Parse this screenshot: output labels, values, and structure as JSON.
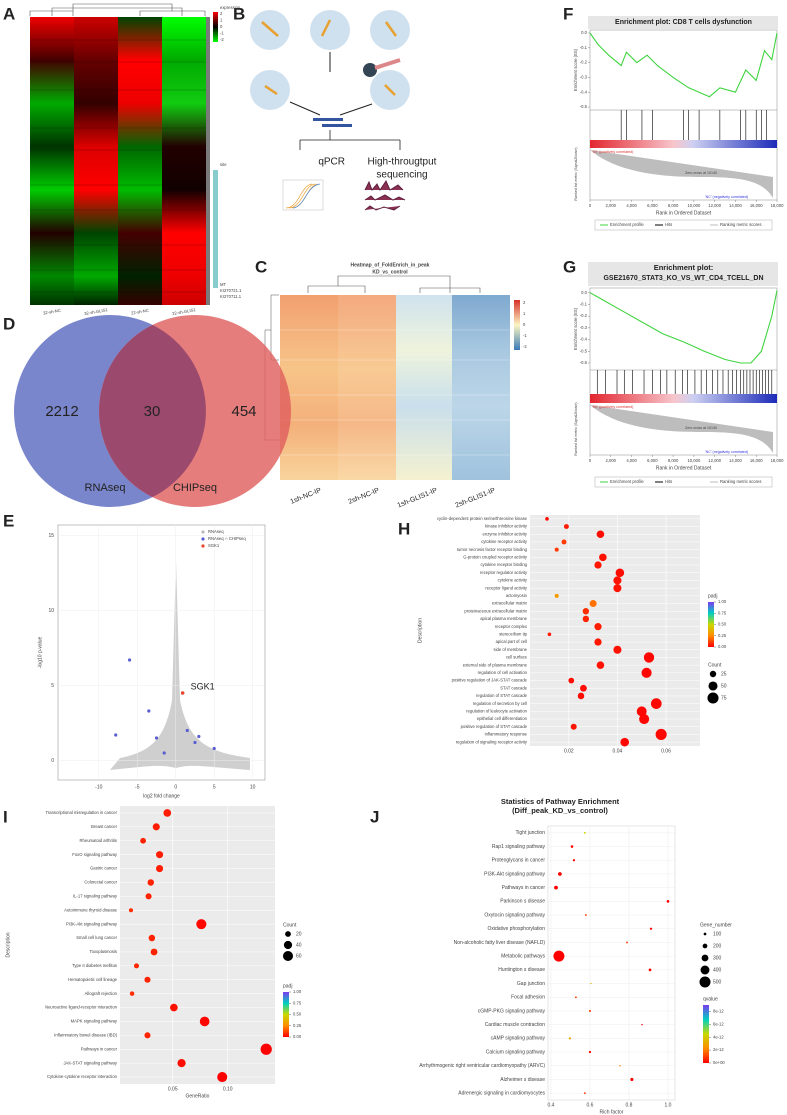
{
  "labels": [
    "A",
    "B",
    "C",
    "D",
    "E",
    "F",
    "G",
    "H",
    "I",
    "J"
  ],
  "A": {
    "legend_title": "expression",
    "legend_ticks": [
      2,
      1,
      0,
      -1,
      -2
    ],
    "legend2_title": "site",
    "site_items": [
      "MT",
      "KI270721.1",
      "KI270711.1"
    ],
    "columns": [
      "32-sh-NC",
      "32-sh-GLIS1",
      "22-sh-NC",
      "22-sh-GLIS1"
    ]
  },
  "B": {
    "qpcr": "qPCR",
    "seq1": "High-througtput",
    "seq2": "sequencing"
  },
  "C": {
    "title": "Heatmap_of_FoldEnrich_in_peak",
    "subtitle": "KD_vs_control",
    "columns": [
      "1sh-NC-IP",
      "2sh-NC-IP",
      "1sh-GLIS1-IP",
      "2sh-GLIS1-IP"
    ],
    "scale_ticks": [
      2,
      1,
      0,
      -1,
      -2
    ]
  },
  "D": {
    "sets": [
      "RNAseq",
      "CHIPseq"
    ],
    "counts": [
      2212,
      30,
      454
    ]
  },
  "E": {
    "xlabel": "log2 fold change",
    "ylabel": "-log10 p-value",
    "legend": [
      "RNAseq",
      "RNAseq ∩ CHIPseq",
      "SGK1"
    ],
    "annotation": "SGK1",
    "xlim": [
      -15.3,
      11.6
    ],
    "ylim": [
      -1.3,
      15.7
    ],
    "xticks": [
      -10,
      -5,
      0,
      5,
      10
    ],
    "yticks": [
      0,
      5,
      10,
      15
    ],
    "grid": true,
    "overlap_x": [
      -6,
      -7.8,
      -3.5,
      -2.5,
      1.5,
      2.5,
      3,
      5,
      -1.5
    ],
    "overlap_y": [
      6.7,
      1.7,
      3.3,
      1.5,
      2,
      1.2,
      1.6,
      0.8,
      0.5
    ],
    "sgk1_x": [
      0.9
    ],
    "sgk1_y": [
      4.5
    ]
  },
  "F": {
    "title": "Enrichment plot: CD8 T cells dysfunction",
    "ylabel": "Enrichment score (ES)",
    "ylabel2": "Ranked list metric (Signal2Noise)",
    "xlabel": "Rank in Ordered Dataset",
    "pos_label": "'SK' (positively correlated)",
    "neg_label": "'NC' (negatively correlated)",
    "zero_cross": "Zero cross at 10140",
    "legend": [
      "Enrichment profile",
      "Hits",
      "Ranking metric scores"
    ],
    "xlim": [
      0,
      18000
    ],
    "ylim": [
      -0.52,
      0.02
    ],
    "xticks": [
      0,
      {
        "value": 2000,
        "label": "2,000"
      },
      {
        "value": 4000,
        "label": "4,000"
      },
      {
        "value": 6000,
        "label": "6,000"
      },
      {
        "value": 8000,
        "label": "8,000"
      },
      {
        "value": 10000,
        "label": "10,000"
      },
      {
        "value": 12000,
        "label": "12,000"
      },
      {
        "value": 14000,
        "label": "14,000"
      },
      {
        "value": 16000,
        "label": "16,000"
      },
      {
        "value": 18000,
        "label": "18,000"
      }
    ],
    "yticks": [
      {
        "value": 0,
        "label": "0.0"
      },
      -0.1,
      -0.2,
      -0.3,
      -0.4,
      -0.5
    ],
    "es_rank": [
      0,
      800,
      1800,
      3000,
      3500,
      4500,
      5500,
      6500,
      8000,
      9500,
      11500,
      12500,
      14000,
      15000,
      16000,
      16800,
      17500,
      18000
    ],
    "es_values": [
      0,
      -0.08,
      -0.15,
      -0.22,
      -0.13,
      -0.2,
      -0.15,
      -0.22,
      -0.3,
      -0.37,
      -0.43,
      -0.37,
      -0.4,
      -0.25,
      -0.32,
      -0.12,
      -0.18,
      0
    ],
    "hits": [
      3000,
      3500,
      5000,
      6000,
      9000,
      9500,
      10500,
      12500,
      14500,
      15000,
      16000,
      16500,
      17000
    ]
  },
  "G": {
    "title": "Enrichment plot:",
    "subtitle": "GSE21670_STAT3_KO_VS_WT_CD4_TCELL_DN",
    "ylabel": "Enrichment score (ES)",
    "ylabel2": "Ranked list metric (Signal2Noise)",
    "xlabel": "Rank in Ordered Dataset",
    "pos_label": "'SK' (positively correlated)",
    "neg_label": "'NC' (negatively correlated)",
    "zero_cross": "Zero cross at 10140",
    "legend": [
      "Enrichment profile",
      "Hits",
      "Ranking metric scores"
    ],
    "xlim": [
      0,
      18000
    ],
    "ylim": [
      -0.66,
      0.04
    ],
    "xticks": [
      0,
      {
        "value": 2000,
        "label": "2,000"
      },
      {
        "value": 4000,
        "label": "4,000"
      },
      {
        "value": 6000,
        "label": "6,000"
      },
      {
        "value": 8000,
        "label": "8,000"
      },
      {
        "value": 10000,
        "label": "10,000"
      },
      {
        "value": 12000,
        "label": "12,000"
      },
      {
        "value": 14000,
        "label": "14,000"
      },
      {
        "value": 16000,
        "label": "16,000"
      },
      {
        "value": 18000,
        "label": "18,000"
      }
    ],
    "yticks": [
      {
        "value": 0,
        "label": "0.0"
      },
      -0.1,
      -0.2,
      -0.3,
      -0.4,
      -0.5,
      -0.6
    ],
    "es_rank": [
      0,
      1000,
      3000,
      5000,
      7000,
      9000,
      11000,
      13000,
      14500,
      15500,
      16500,
      17500,
      18000
    ],
    "es_values": [
      0,
      -0.05,
      -0.15,
      -0.25,
      -0.35,
      -0.42,
      -0.5,
      -0.57,
      -0.6,
      -0.6,
      -0.5,
      -0.2,
      0.02
    ],
    "hits": [
      700,
      1500,
      2600,
      3300,
      4100,
      5200,
      6000,
      6800,
      7400,
      8200,
      8900,
      9400,
      10100,
      10700,
      11200,
      11800,
      12300,
      12800,
      13300,
      13700,
      14100,
      14500,
      14800,
      15100,
      15400,
      15700,
      16000,
      16300,
      16600,
      16900,
      17200,
      17500
    ]
  },
  "H": {
    "ylabel": "Description",
    "size_title": "Count",
    "color_title": "padj",
    "categories": [
      "cyclin-dependent protein serine/threonine kinase",
      "kinase inhibitor activity",
      "enzyme inhibitor activity",
      "cytokine receptor activity",
      "tumor necrosis factor receptor binding",
      "G-protein coupled receptor activity",
      "cytokine receptor binding",
      "receptor regulator activity",
      "cytokine activity",
      "receptor ligand activity",
      "actomyosin",
      "extracellular matrix",
      "proteinaceous extracellular matrix",
      "apical plasma membrane",
      "receptor complex",
      "stereocilium tip",
      "apical part of cell",
      "side of membrane",
      "cell surface",
      "external side of plasma membrane",
      "regulation of cell activation",
      "positive regulation of JAK-STAT cascade",
      "STAT cascade",
      "regulation of STAT cascade",
      "regulation of secretion by cell",
      "regulation of leukocyte activation",
      "epithelial cell differentiation",
      "positive regulation of STAT cascade",
      "inflammatory response",
      "regulation of signaling receptor activity"
    ],
    "values": [
      0.011,
      0.019,
      0.033,
      0.018,
      0.015,
      0.034,
      0.032,
      0.041,
      0.04,
      0.04,
      0.015,
      0.03,
      0.027,
      0.027,
      0.032,
      0.012,
      0.032,
      0.04,
      0.053,
      0.033,
      0.052,
      0.021,
      0.026,
      0.025,
      0.056,
      0.05,
      0.051,
      0.022,
      0.058,
      0.043
    ],
    "sizes": [
      8,
      15,
      35,
      15,
      10,
      35,
      32,
      45,
      40,
      40,
      10,
      30,
      25,
      25,
      32,
      8,
      32,
      40,
      65,
      35,
      62,
      20,
      28,
      26,
      70,
      60,
      62,
      22,
      75,
      45
    ],
    "colors": [
      0.02,
      0.05,
      0.02,
      0.1,
      0.1,
      0.03,
      0.04,
      0.02,
      0.03,
      0.03,
      0.3,
      0.2,
      0.08,
      0.06,
      0.05,
      0.05,
      0.04,
      0.03,
      0.01,
      0.03,
      0.01,
      0.02,
      0.02,
      0.02,
      0.01,
      0.01,
      0.01,
      0.03,
      0.01,
      0.01
    ],
    "xlim": [
      0.004,
      0.074
    ],
    "xticks": [
      0.02,
      0.04,
      0.06
    ],
    "color_ticks": [
      {
        "value": 1,
        "label": "1.00"
      },
      {
        "value": 0.75,
        "label": "0.75"
      },
      {
        "value": 0.5,
        "label": "0.50"
      },
      {
        "value": 0.25,
        "label": "0.25"
      },
      {
        "value": 0,
        "label": "0.00"
      }
    ],
    "size_ticks": [
      25,
      50,
      75
    ]
  },
  "I": {
    "ylabel": "Description",
    "xlabel": "GeneRatio",
    "size_title": "Count",
    "color_title": "padj",
    "categories": [
      "Transcriptional misregulation in cancer",
      "Breast cancer",
      "Rheumatoid arthritis",
      "FoxO signaling pathway",
      "Gastric cancer",
      "Colorectal cancer",
      "IL-17 signaling pathway",
      "Autoimmune thyroid disease",
      "PI3K-Akt signaling pathway",
      "Small cell lung cancer",
      "Toxoplasmosis",
      "Type II diabetes mellitus",
      "Hematopoietic cell lineage",
      "Allograft rejection",
      "Neuroactive ligand-receptor interaction",
      "MAPK signaling pathway",
      "Inflammatory bowel disease (IBD)",
      "Pathways in cancer",
      "JAK-STAT signaling pathway",
      "Cytokine-cytokine receptor interaction"
    ],
    "values": [
      0.045,
      0.035,
      0.023,
      0.038,
      0.038,
      0.03,
      0.028,
      0.012,
      0.076,
      0.031,
      0.033,
      0.017,
      0.027,
      0.013,
      0.051,
      0.079,
      0.027,
      0.135,
      0.058,
      0.095
    ],
    "sizes": [
      35,
      30,
      20,
      30,
      30,
      25,
      22,
      10,
      60,
      25,
      27,
      15,
      22,
      12,
      35,
      55,
      22,
      75,
      40,
      60
    ],
    "colors": [
      0.05,
      0.05,
      0.06,
      0.05,
      0.05,
      0.06,
      0.06,
      0.08,
      0.01,
      0.06,
      0.06,
      0.07,
      0.06,
      0.08,
      0.03,
      0.01,
      0.06,
      0.0,
      0.02,
      0.0
    ],
    "xlim": [
      0.002,
      0.143
    ],
    "xticks": [
      0.05,
      {
        "value": 0.1,
        "label": "0.10"
      }
    ],
    "color_ticks": [
      {
        "value": 1,
        "label": "1.00"
      },
      {
        "value": 0.75,
        "label": "0.75"
      },
      {
        "value": 0.5,
        "label": "0.50"
      },
      {
        "value": 0.25,
        "label": "0.25"
      },
      {
        "value": 0,
        "label": "0.00"
      }
    ],
    "size_ticks": [
      20,
      40,
      60
    ]
  },
  "J": {
    "title": "Statistics of Pathway Enrichment",
    "subtitle": "(Diff_peak_KD_vs_control)",
    "xlabel": "Rich factor",
    "size_title": "Gene_number",
    "color_title": "qvalue",
    "categories": [
      "Tight junction",
      "Rap1 signaling pathway",
      "Proteoglycans in cancer",
      "PI3K-Akt signaling pathway",
      "Pathways in cancer",
      "Parkinson s disease",
      "Oxytocin signaling pathway",
      "Oxidative phosphorylation",
      "Non-alcoholic fatty liver disease (NAFLD)",
      "Metabolic pathways",
      "Huntington s disease",
      "Gap junction",
      "Focal adhesion",
      "cGMP-PKG signaling pathway",
      "Cardiac muscle contraction",
      "cAMP signaling pathway",
      "Calcium signaling pathway",
      "Arrhythmogenic right ventricular cardiomyopathy (ARVC)",
      "Alzheimer s disease",
      "Adrenergic signaling in cardiomyocytes"
    ],
    "values": [
      0.574,
      0.508,
      0.518,
      0.446,
      0.426,
      1.0,
      0.579,
      0.913,
      0.79,
      0.441,
      0.908,
      0.605,
      0.528,
      0.6,
      0.867,
      0.497,
      0.6,
      0.754,
      0.815,
      0.574
    ],
    "sizes": [
      60,
      100,
      80,
      150,
      150,
      100,
      60,
      80,
      60,
      500,
      100,
      40,
      60,
      70,
      40,
      80,
      80,
      40,
      120,
      60
    ],
    "colors": [
      4.5e-12,
      0,
      0,
      0,
      0,
      0,
      1e-12,
      0,
      1e-12,
      0,
      0,
      3.5e-12,
      1e-12,
      1e-12,
      0,
      3e-12,
      0,
      2e-12,
      0,
      1e-12
    ],
    "xlim": [
      0.385,
      1.036
    ],
    "xticks": [
      0.4,
      0.6,
      0.8,
      {
        "value": 1,
        "label": "1.0"
      }
    ],
    "color_ticks": [
      {
        "value": 8e-12,
        "label": "8e-12"
      },
      {
        "value": 6e-12,
        "label": "6e-12"
      },
      {
        "value": 4e-12,
        "label": "4e-12"
      },
      {
        "value": 2e-12,
        "label": "2e-12"
      },
      {
        "value": 0,
        "label": "0e+00"
      }
    ],
    "size_ticks": [
      100,
      200,
      300,
      400,
      500
    ]
  }
}
